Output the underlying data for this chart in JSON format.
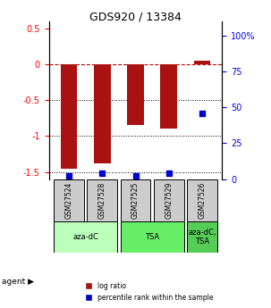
{
  "title": "GDS920 / 13384",
  "samples": [
    "GSM27524",
    "GSM27528",
    "GSM27525",
    "GSM27529",
    "GSM27526"
  ],
  "log_ratios": [
    -1.45,
    -1.38,
    -0.85,
    -0.9,
    0.05
  ],
  "percentile_ranks": [
    2,
    4,
    2,
    4,
    46
  ],
  "agents": [
    {
      "label": "aza-dC",
      "samples": [
        "GSM27524",
        "GSM27528"
      ],
      "color": "#aaffaa"
    },
    {
      "label": "TSA",
      "samples": [
        "GSM27525",
        "GSM27529"
      ],
      "color": "#66dd66"
    },
    {
      "label": "aza-dC,\nTSA",
      "samples": [
        "GSM27526"
      ],
      "color": "#55cc55"
    }
  ],
  "bar_color": "#aa1111",
  "dot_color": "#0000cc",
  "ylim_left": [
    -1.6,
    0.6
  ],
  "ylim_right": [
    0,
    110
  ],
  "yticks_left": [
    -1.5,
    -1.0,
    -0.5,
    0.0,
    0.5
  ],
  "ytick_labels_left": [
    "-1.5",
    "-1",
    "-0.5",
    "0",
    "0.5"
  ],
  "yticks_right": [
    0,
    25,
    50,
    75,
    100
  ],
  "ytick_labels_right": [
    "0",
    "25",
    "50",
    "75",
    "100%"
  ],
  "hlines": [
    0.0,
    -0.5,
    -1.0,
    -1.5
  ],
  "hline_styles": [
    "dashed",
    "dotted",
    "dotted",
    "dotted"
  ],
  "background_color": "#ffffff",
  "sample_box_color": "#cccccc",
  "agent_label": "agent"
}
